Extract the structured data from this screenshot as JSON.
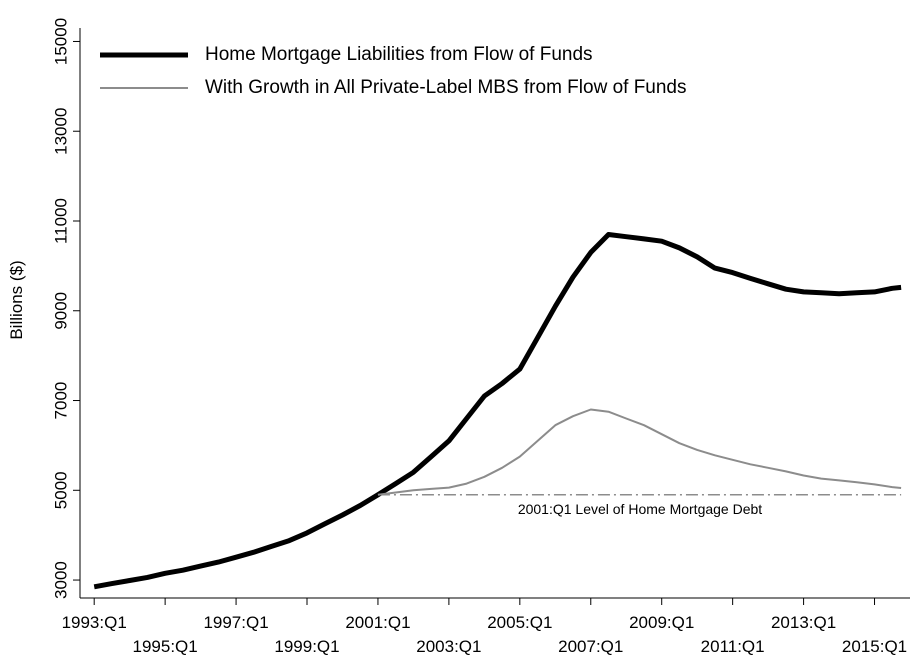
{
  "chart_data": {
    "type": "line",
    "y_label": "Billions ($)",
    "x": [
      1993,
      1993.5,
      1994,
      1994.5,
      1995,
      1995.5,
      1996,
      1996.5,
      1997,
      1997.5,
      1998,
      1998.5,
      1999,
      1999.5,
      2000,
      2000.5,
      2001,
      2001.5,
      2002,
      2002.5,
      2003,
      2003.5,
      2004,
      2004.5,
      2005,
      2005.5,
      2006,
      2006.5,
      2007,
      2007.5,
      2008,
      2008.5,
      2009,
      2009.5,
      2010,
      2010.5,
      2011,
      2011.5,
      2012,
      2012.5,
      2013,
      2013.5,
      2014,
      2014.5,
      2015,
      2015.5,
      2015.75
    ],
    "series": [
      {
        "name": "Home Mortgage Liabilities from Flow of Funds",
        "color": "#000000",
        "width": 5,
        "values": [
          2850,
          2920,
          2990,
          3060,
          3150,
          3220,
          3310,
          3400,
          3510,
          3620,
          3750,
          3880,
          4050,
          4250,
          4450,
          4660,
          4900,
          5150,
          5400,
          5750,
          6100,
          6600,
          7100,
          7380,
          7700,
          8400,
          9100,
          9750,
          10300,
          10700,
          10650,
          10600,
          10550,
          10400,
          10200,
          9950,
          9850,
          9720,
          9600,
          9480,
          9420,
          9400,
          9380,
          9400,
          9420,
          9500,
          9520
        ]
      },
      {
        "name": "With Growth in All Private-Label MBS from Flow of Funds",
        "color": "#8c8c8c",
        "width": 2,
        "values": [
          null,
          null,
          null,
          null,
          null,
          null,
          null,
          null,
          null,
          null,
          null,
          null,
          null,
          null,
          null,
          null,
          4900,
          4950,
          5000,
          5030,
          5060,
          5150,
          5300,
          5500,
          5750,
          6100,
          6450,
          6650,
          6800,
          6750,
          6600,
          6450,
          6250,
          6050,
          5900,
          5780,
          5680,
          5580,
          5500,
          5420,
          5330,
          5260,
          5220,
          5180,
          5130,
          5070,
          5050
        ]
      }
    ],
    "hline": {
      "y": 4900,
      "x": [
        2001,
        2015.75
      ],
      "color": "#8c8c8c",
      "label": "2001:Q1 Level of Home Mortgage Debt"
    },
    "xlim": [
      1992.6,
      2016.0
    ],
    "xticks": [
      {
        "value": 1993,
        "label": "1993:Q1"
      },
      {
        "value": 1995,
        "label": "1995:Q1"
      },
      {
        "value": 1997,
        "label": "1997:Q1"
      },
      {
        "value": 1999,
        "label": "1999:Q1"
      },
      {
        "value": 2001,
        "label": "2001:Q1"
      },
      {
        "value": 2003,
        "label": "2003:Q1"
      },
      {
        "value": 2005,
        "label": "2005:Q1"
      },
      {
        "value": 2007,
        "label": "2007:Q1"
      },
      {
        "value": 2009,
        "label": "2009:Q1"
      },
      {
        "value": 2011,
        "label": "2011:Q1"
      },
      {
        "value": 2013,
        "label": "2013:Q1"
      },
      {
        "value": 2015,
        "label": "2015:Q1"
      }
    ],
    "ylim": [
      2600,
      15300
    ],
    "yticks": [
      3000,
      5000,
      7000,
      9000,
      11000,
      13000,
      15000
    ],
    "grid": false,
    "legend": "top-left"
  }
}
